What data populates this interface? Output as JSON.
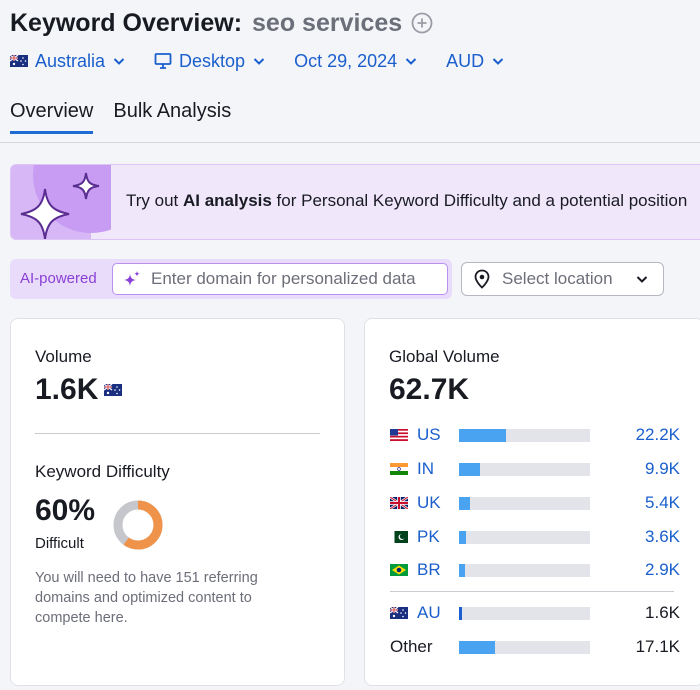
{
  "header": {
    "title": "Keyword Overview:",
    "keyword": "seo services"
  },
  "filters": {
    "country": "Australia",
    "device": "Desktop",
    "date": "Oct 29, 2024",
    "currency": "AUD"
  },
  "tabs": [
    {
      "label": "Overview",
      "active": true
    },
    {
      "label": "Bulk Analysis",
      "active": false
    }
  ],
  "banner": {
    "prefix": "Try out ",
    "bold": "AI analysis",
    "suffix": " for Personal Keyword Difficulty and a potential position"
  },
  "ai": {
    "label": "AI-powered",
    "placeholder": "Enter domain for personalized data"
  },
  "location": {
    "placeholder": "Select location"
  },
  "volume": {
    "label": "Volume",
    "value": "1.6K"
  },
  "kd": {
    "label": "Keyword Difficulty",
    "value": "60%",
    "rating": "Difficult",
    "percent": 60,
    "color": "#f0934a",
    "description": "You will need to have 151 referring domains and optimized content to compete here."
  },
  "global": {
    "label": "Global Volume",
    "value": "62.7K",
    "rows": [
      {
        "code": "US",
        "value": "22.2K",
        "share": 0.355
      },
      {
        "code": "IN",
        "value": "9.9K",
        "share": 0.158
      },
      {
        "code": "UK",
        "value": "5.4K",
        "share": 0.086
      },
      {
        "code": "PK",
        "value": "3.6K",
        "share": 0.057
      },
      {
        "code": "BR",
        "value": "2.9K",
        "share": 0.046
      }
    ],
    "selected": {
      "code": "AU",
      "value": "1.6K",
      "share": 0.026
    },
    "other": {
      "label": "Other",
      "value": "17.1K",
      "share": 0.273
    }
  },
  "colors": {
    "accent": "#1a5fcc",
    "bar": "#4aa3f0",
    "ai_purple": "#8a3fd6"
  }
}
